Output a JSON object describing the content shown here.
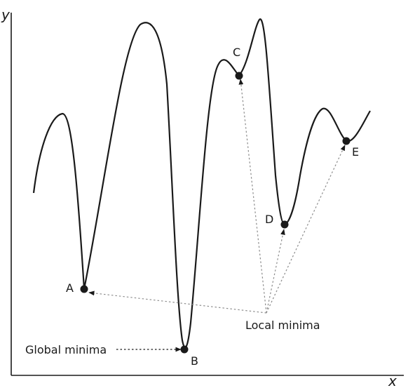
{
  "axes": {
    "x_label": "x",
    "y_label": "y"
  },
  "points": [
    {
      "id": "A",
      "label": "A",
      "kind": "local"
    },
    {
      "id": "B",
      "label": "B",
      "kind": "global"
    },
    {
      "id": "C",
      "label": "C",
      "kind": "local"
    },
    {
      "id": "D",
      "label": "D",
      "kind": "local"
    },
    {
      "id": "E",
      "label": "E",
      "kind": "local"
    }
  ],
  "annotations": {
    "global": "Global minima",
    "local": "Local minima"
  },
  "colors": {
    "curve": "#1a1a1a",
    "axis": "#1a1a1a",
    "point": "#1a1a1a",
    "arrow": "#8c8c8c"
  }
}
